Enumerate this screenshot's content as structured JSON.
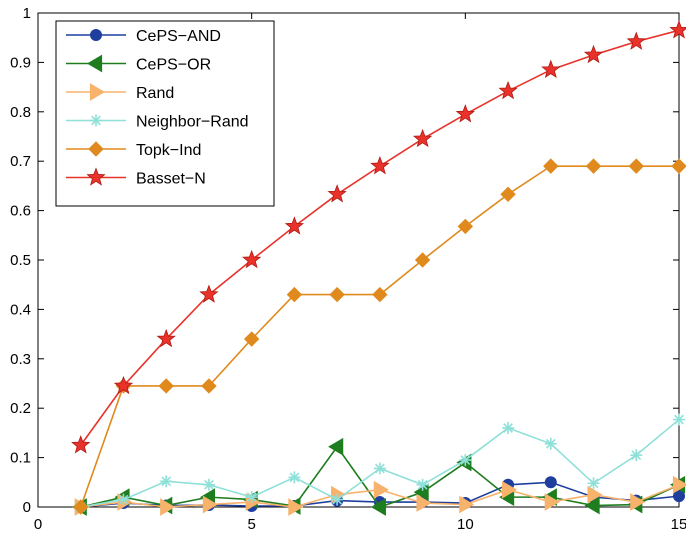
{
  "chart_data": {
    "type": "line",
    "title": "",
    "xlabel": "",
    "ylabel": "",
    "xlim": [
      0,
      15
    ],
    "ylim": [
      0,
      1
    ],
    "xticks": [
      0,
      5,
      10,
      15
    ],
    "yticks": [
      0,
      0.1,
      0.2,
      0.3,
      0.4,
      0.5,
      0.6,
      0.7,
      0.8,
      0.9,
      1
    ],
    "grid": false,
    "legend_position": "top-left",
    "x": [
      1,
      2,
      3,
      4,
      5,
      6,
      7,
      8,
      9,
      10,
      11,
      12,
      13,
      14,
      15
    ],
    "series": [
      {
        "name": "CePS−AND",
        "color": "#1f3f9f",
        "marker": "circle",
        "values": [
          0,
          0.008,
          0.003,
          0.004,
          0.002,
          0.002,
          0.013,
          0.01,
          0.01,
          0.008,
          0.045,
          0.05,
          0.02,
          0.013,
          0.022
        ]
      },
      {
        "name": "CePS−OR",
        "color": "#1e7d1e",
        "marker": "triangle-left",
        "values": [
          0,
          0.02,
          0.003,
          0.02,
          0.015,
          0.002,
          0.122,
          0.0,
          0.03,
          0.09,
          0.02,
          0.02,
          0.003,
          0.005,
          0.045
        ]
      },
      {
        "name": "Rand",
        "color": "#f7b26b",
        "marker": "triangle-right",
        "values": [
          0,
          0.01,
          0.0,
          0.005,
          0.01,
          0.0,
          0.025,
          0.035,
          0.008,
          0.005,
          0.035,
          0.01,
          0.025,
          0.01,
          0.045
        ]
      },
      {
        "name": "Neighbor−Rand",
        "color": "#8ee0d8",
        "marker": "asterisk",
        "values": [
          0,
          0.015,
          0.052,
          0.045,
          0.02,
          0.06,
          0.015,
          0.078,
          0.045,
          0.095,
          0.16,
          0.128,
          0.048,
          0.105,
          0.177
        ]
      },
      {
        "name": "Topk−Ind",
        "color": "#e08a1e",
        "marker": "diamond",
        "values": [
          0,
          0.245,
          0.245,
          0.245,
          0.34,
          0.43,
          0.43,
          0.43,
          0.5,
          0.568,
          0.633,
          0.69,
          0.69,
          0.69,
          0.69
        ]
      },
      {
        "name": "Basset−N",
        "color": "#e8322a",
        "marker": "star",
        "values": [
          0.125,
          0.245,
          0.34,
          0.43,
          0.5,
          0.568,
          0.633,
          0.69,
          0.745,
          0.795,
          0.842,
          0.885,
          0.915,
          0.942,
          0.965
        ]
      }
    ]
  }
}
